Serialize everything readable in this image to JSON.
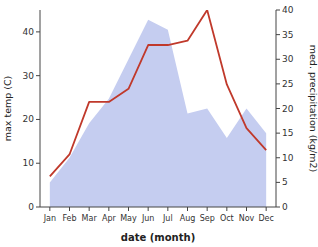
{
  "chart_data": {
    "type": "line",
    "categories": [
      "Jan",
      "Feb",
      "Mar",
      "Apr",
      "May",
      "Jun",
      "Jul",
      "Aug",
      "Sep",
      "Oct",
      "Nov",
      "Dec"
    ],
    "series": [
      {
        "type": "area",
        "color": "#c5cdf0",
        "axis": "y2",
        "values": [
          5,
          10,
          17,
          22,
          30,
          38,
          36,
          19,
          20,
          14,
          20,
          15
        ]
      },
      {
        "type": "line",
        "color": "#c0392b",
        "values": [
          7,
          12,
          24,
          24,
          27,
          37,
          37,
          38,
          45,
          28,
          18,
          13
        ]
      }
    ],
    "xlabel": "date (month)",
    "ylabel": "max temp (C)",
    "y2label": "med. precipitation (kg/m2)",
    "ylim": [
      0,
      45
    ],
    "yticks": [
      0,
      10,
      20,
      30,
      40
    ],
    "y2lim": [
      0,
      40
    ],
    "y2ticks": [
      0,
      5,
      10,
      15,
      20,
      25,
      30,
      35,
      40
    ],
    "grid": false
  }
}
